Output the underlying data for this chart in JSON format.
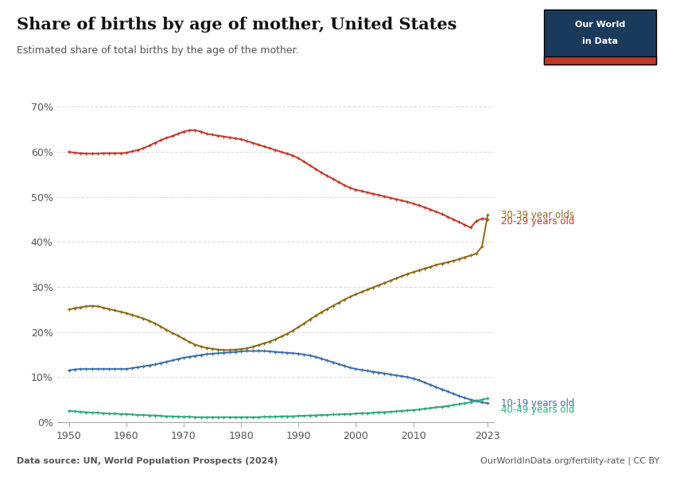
{
  "title": "Share of births by age of mother, United States",
  "subtitle": "Estimated share of total births by the age of the mother.",
  "source_left": "Data source: UN, World Population Prospects (2024)",
  "source_right": "OurWorldInData.org/fertility-rate | CC BY",
  "ylim": [
    0,
    0.72
  ],
  "yticks": [
    0.0,
    0.1,
    0.2,
    0.3,
    0.4,
    0.5,
    0.6,
    0.7
  ],
  "ytick_labels": [
    "0%",
    "10%",
    "20%",
    "30%",
    "40%",
    "50%",
    "60%",
    "70%"
  ],
  "xticks": [
    1950,
    1960,
    1970,
    1980,
    1990,
    2000,
    2010,
    2023
  ],
  "bg_color": "#ffffff",
  "grid_color": "#cccccc",
  "owid_box_bg": "#1a3a5c",
  "owid_box_red": "#c0392b",
  "series": {
    "20-29 years old": {
      "color": "#c0392b",
      "years": [
        1950,
        1951,
        1952,
        1953,
        1954,
        1955,
        1956,
        1957,
        1958,
        1959,
        1960,
        1961,
        1962,
        1963,
        1964,
        1965,
        1966,
        1967,
        1968,
        1969,
        1970,
        1971,
        1972,
        1973,
        1974,
        1975,
        1976,
        1977,
        1978,
        1979,
        1980,
        1981,
        1982,
        1983,
        1984,
        1985,
        1986,
        1987,
        1988,
        1989,
        1990,
        1991,
        1992,
        1993,
        1994,
        1995,
        1996,
        1997,
        1998,
        1999,
        2000,
        2001,
        2002,
        2003,
        2004,
        2005,
        2006,
        2007,
        2008,
        2009,
        2010,
        2011,
        2012,
        2013,
        2014,
        2015,
        2016,
        2017,
        2018,
        2019,
        2020,
        2021,
        2022,
        2023
      ],
      "values": [
        0.6,
        0.598,
        0.597,
        0.596,
        0.596,
        0.596,
        0.597,
        0.597,
        0.597,
        0.597,
        0.598,
        0.601,
        0.604,
        0.608,
        0.614,
        0.62,
        0.626,
        0.631,
        0.635,
        0.64,
        0.645,
        0.648,
        0.648,
        0.645,
        0.64,
        0.638,
        0.636,
        0.634,
        0.632,
        0.63,
        0.628,
        0.624,
        0.62,
        0.616,
        0.612,
        0.608,
        0.604,
        0.6,
        0.596,
        0.592,
        0.586,
        0.578,
        0.57,
        0.562,
        0.554,
        0.547,
        0.54,
        0.533,
        0.526,
        0.52,
        0.516,
        0.513,
        0.51,
        0.507,
        0.504,
        0.501,
        0.498,
        0.495,
        0.492,
        0.489,
        0.485,
        0.481,
        0.477,
        0.472,
        0.467,
        0.462,
        0.456,
        0.45,
        0.444,
        0.438,
        0.432,
        0.446,
        0.452,
        0.45
      ]
    },
    "30-39 year olds": {
      "color": "#8B6914",
      "years": [
        1950,
        1951,
        1952,
        1953,
        1954,
        1955,
        1956,
        1957,
        1958,
        1959,
        1960,
        1961,
        1962,
        1963,
        1964,
        1965,
        1966,
        1967,
        1968,
        1969,
        1970,
        1971,
        1972,
        1973,
        1974,
        1975,
        1976,
        1977,
        1978,
        1979,
        1980,
        1981,
        1982,
        1983,
        1984,
        1985,
        1986,
        1987,
        1988,
        1989,
        1990,
        1991,
        1992,
        1993,
        1994,
        1995,
        1996,
        1997,
        1998,
        1999,
        2000,
        2001,
        2002,
        2003,
        2004,
        2005,
        2006,
        2007,
        2008,
        2009,
        2010,
        2011,
        2012,
        2013,
        2014,
        2015,
        2016,
        2017,
        2018,
        2019,
        2020,
        2021,
        2022,
        2023
      ],
      "values": [
        0.25,
        0.253,
        0.255,
        0.257,
        0.258,
        0.257,
        0.254,
        0.251,
        0.248,
        0.245,
        0.242,
        0.238,
        0.234,
        0.23,
        0.225,
        0.219,
        0.212,
        0.205,
        0.198,
        0.192,
        0.185,
        0.178,
        0.172,
        0.168,
        0.165,
        0.163,
        0.161,
        0.16,
        0.16,
        0.161,
        0.162,
        0.164,
        0.167,
        0.171,
        0.175,
        0.179,
        0.184,
        0.19,
        0.196,
        0.203,
        0.211,
        0.219,
        0.228,
        0.236,
        0.244,
        0.251,
        0.258,
        0.265,
        0.272,
        0.278,
        0.284,
        0.289,
        0.294,
        0.299,
        0.304,
        0.309,
        0.314,
        0.319,
        0.324,
        0.329,
        0.333,
        0.337,
        0.341,
        0.345,
        0.349,
        0.352,
        0.355,
        0.358,
        0.362,
        0.366,
        0.37,
        0.374,
        0.39,
        0.46
      ]
    },
    "10-19 years old": {
      "color": "#3a6ea5",
      "years": [
        1950,
        1951,
        1952,
        1953,
        1954,
        1955,
        1956,
        1957,
        1958,
        1959,
        1960,
        1961,
        1962,
        1963,
        1964,
        1965,
        1966,
        1967,
        1968,
        1969,
        1970,
        1971,
        1972,
        1973,
        1974,
        1975,
        1976,
        1977,
        1978,
        1979,
        1980,
        1981,
        1982,
        1983,
        1984,
        1985,
        1986,
        1987,
        1988,
        1989,
        1990,
        1991,
        1992,
        1993,
        1994,
        1995,
        1996,
        1997,
        1998,
        1999,
        2000,
        2001,
        2002,
        2003,
        2004,
        2005,
        2006,
        2007,
        2008,
        2009,
        2010,
        2011,
        2012,
        2013,
        2014,
        2015,
        2016,
        2017,
        2018,
        2019,
        2020,
        2021,
        2022,
        2023
      ],
      "values": [
        0.115,
        0.117,
        0.118,
        0.118,
        0.118,
        0.118,
        0.118,
        0.118,
        0.118,
        0.118,
        0.118,
        0.12,
        0.122,
        0.124,
        0.126,
        0.128,
        0.131,
        0.134,
        0.137,
        0.14,
        0.143,
        0.145,
        0.147,
        0.149,
        0.151,
        0.152,
        0.153,
        0.154,
        0.155,
        0.156,
        0.157,
        0.158,
        0.158,
        0.158,
        0.158,
        0.157,
        0.156,
        0.155,
        0.154,
        0.153,
        0.152,
        0.15,
        0.148,
        0.145,
        0.141,
        0.137,
        0.133,
        0.129,
        0.125,
        0.121,
        0.118,
        0.116,
        0.114,
        0.112,
        0.11,
        0.108,
        0.106,
        0.104,
        0.102,
        0.1,
        0.097,
        0.093,
        0.088,
        0.083,
        0.078,
        0.073,
        0.068,
        0.063,
        0.058,
        0.054,
        0.05,
        0.047,
        0.044,
        0.042
      ]
    },
    "40-49 years old": {
      "color": "#2ca87a",
      "years": [
        1950,
        1951,
        1952,
        1953,
        1954,
        1955,
        1956,
        1957,
        1958,
        1959,
        1960,
        1961,
        1962,
        1963,
        1964,
        1965,
        1966,
        1967,
        1968,
        1969,
        1970,
        1971,
        1972,
        1973,
        1974,
        1975,
        1976,
        1977,
        1978,
        1979,
        1980,
        1981,
        1982,
        1983,
        1984,
        1985,
        1986,
        1987,
        1988,
        1989,
        1990,
        1991,
        1992,
        1993,
        1994,
        1995,
        1996,
        1997,
        1998,
        1999,
        2000,
        2001,
        2002,
        2003,
        2004,
        2005,
        2006,
        2007,
        2008,
        2009,
        2010,
        2011,
        2012,
        2013,
        2014,
        2015,
        2016,
        2017,
        2018,
        2019,
        2020,
        2021,
        2022,
        2023
      ],
      "values": [
        0.025,
        0.024,
        0.023,
        0.022,
        0.021,
        0.021,
        0.02,
        0.019,
        0.019,
        0.018,
        0.018,
        0.017,
        0.016,
        0.016,
        0.015,
        0.015,
        0.014,
        0.013,
        0.013,
        0.012,
        0.012,
        0.012,
        0.011,
        0.011,
        0.011,
        0.011,
        0.011,
        0.011,
        0.011,
        0.011,
        0.011,
        0.011,
        0.011,
        0.011,
        0.012,
        0.012,
        0.012,
        0.013,
        0.013,
        0.013,
        0.014,
        0.014,
        0.015,
        0.015,
        0.016,
        0.016,
        0.017,
        0.017,
        0.018,
        0.018,
        0.019,
        0.02,
        0.02,
        0.021,
        0.022,
        0.022,
        0.023,
        0.024,
        0.025,
        0.026,
        0.027,
        0.028,
        0.03,
        0.031,
        0.033,
        0.034,
        0.036,
        0.038,
        0.04,
        0.042,
        0.044,
        0.047,
        0.05,
        0.053
      ]
    }
  }
}
